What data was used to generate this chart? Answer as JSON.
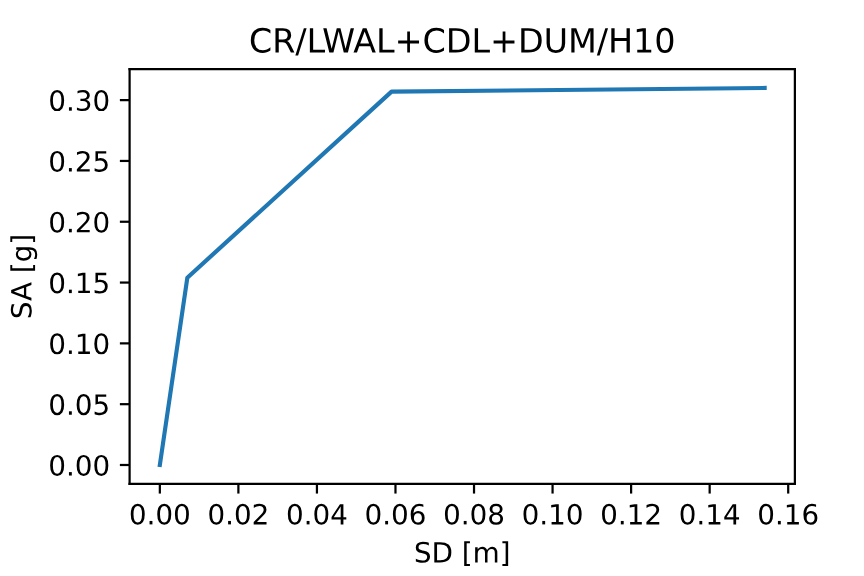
{
  "chart_data": {
    "type": "line",
    "title": "CR/LWAL+CDL+DUM/H10",
    "xlabel": "SD [m]",
    "ylabel": "SA [g]",
    "x": [
      0,
      0.007,
      0.059,
      0.154
    ],
    "series": [
      {
        "color": "#1f77b4",
        "values": [
          0,
          0.154,
          0.307,
          0.31
        ]
      }
    ],
    "xlim": [
      -0.0077,
      0.1617
    ],
    "ylim": [
      -0.0155,
      0.3255
    ],
    "xticks": [
      {
        "value": 0,
        "label": "0.00"
      },
      {
        "value": 0.02,
        "label": "0.02"
      },
      {
        "value": 0.04,
        "label": "0.04"
      },
      {
        "value": 0.06,
        "label": "0.06"
      },
      {
        "value": 0.08,
        "label": "0.08"
      },
      {
        "value": 0.1,
        "label": "0.10"
      },
      {
        "value": 0.12,
        "label": "0.12"
      },
      {
        "value": 0.14,
        "label": "0.14"
      },
      {
        "value": 0.16,
        "label": "0.16"
      }
    ],
    "yticks": [
      {
        "value": 0,
        "label": "0.00"
      },
      {
        "value": 0.05,
        "label": "0.05"
      },
      {
        "value": 0.1,
        "label": "0.10"
      },
      {
        "value": 0.15,
        "label": "0.15"
      },
      {
        "value": 0.2,
        "label": "0.20"
      },
      {
        "value": 0.25,
        "label": "0.25"
      },
      {
        "value": 0.3,
        "label": "0.30"
      }
    ],
    "grid": false,
    "legend": false
  }
}
